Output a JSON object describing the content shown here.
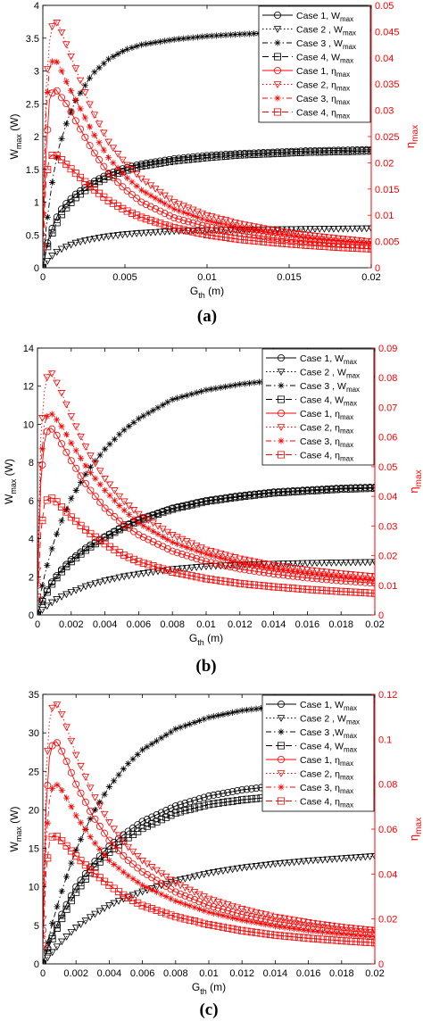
{
  "colors": {
    "w": "#000000",
    "eta": "#ff0000"
  },
  "chart_data": [
    {
      "type": "line",
      "panel": "(a)",
      "xlabel": "G",
      "xlabel_sub": "th",
      "xlabel_unit": " (m)",
      "ylabel": "W",
      "ylabel_sub": "max",
      "ylabel_unit": " (W)",
      "y2label": "η",
      "y2label_sub": "max",
      "xlim": [
        0,
        0.02
      ],
      "ylim": [
        0,
        4
      ],
      "y2lim": [
        0,
        0.05
      ],
      "xticks": [
        "0",
        "0.005",
        "0.01",
        "0.015",
        "0.02"
      ],
      "yticks": [
        "0",
        "0.5",
        "1",
        "1.5",
        "2",
        "2.5",
        "3",
        "3.5",
        "4"
      ],
      "y2ticks": [
        "0",
        "0.005",
        "0.01",
        "0.015",
        "0.02",
        "0.025",
        "0.03",
        "0.035",
        "0.04",
        "0.045",
        "0.05"
      ],
      "legend_position": "top-right",
      "legend": [
        "Case 1, W_max",
        "Case 2 , W_max",
        "Case 3 , W_max",
        "Case 4, W_max",
        "Case 1, η_max",
        "Case 2, η_max",
        "Case 3, η_max",
        "Case 4, η_max"
      ],
      "x": [
        0,
        0.0002,
        0.0004,
        0.0006,
        0.0008,
        0.001,
        0.0015,
        0.002,
        0.003,
        0.004,
        0.005,
        0.006,
        0.008,
        0.01,
        0.012,
        0.014,
        0.016,
        0.018,
        0.02
      ],
      "series": [
        {
          "name": "Case 1, W_max",
          "axis": "left",
          "values": [
            0,
            0.3,
            0.48,
            0.62,
            0.74,
            0.85,
            1.0,
            1.12,
            1.3,
            1.43,
            1.52,
            1.58,
            1.66,
            1.71,
            1.74,
            1.76,
            1.78,
            1.79,
            1.8
          ]
        },
        {
          "name": "Case 2 , W_max",
          "axis": "left",
          "values": [
            0,
            0.08,
            0.14,
            0.19,
            0.23,
            0.27,
            0.33,
            0.38,
            0.44,
            0.48,
            0.51,
            0.53,
            0.56,
            0.57,
            0.58,
            0.585,
            0.59,
            0.595,
            0.6
          ]
        },
        {
          "name": "Case 3 , W_max",
          "axis": "left",
          "values": [
            0,
            0.6,
            1.0,
            1.35,
            1.62,
            1.85,
            2.25,
            2.55,
            2.95,
            3.18,
            3.32,
            3.4,
            3.48,
            3.53,
            3.56,
            3.58,
            3.6,
            3.61,
            3.62
          ]
        },
        {
          "name": "Case 4, W_max",
          "axis": "left",
          "values": [
            0,
            0.25,
            0.42,
            0.55,
            0.66,
            0.76,
            0.94,
            1.07,
            1.26,
            1.39,
            1.48,
            1.55,
            1.63,
            1.68,
            1.72,
            1.74,
            1.76,
            1.77,
            1.78
          ]
        },
        {
          "name": "Case 1, η_max",
          "axis": "right",
          "values": [
            0.006,
            0.022,
            0.032,
            0.0335,
            0.034,
            0.033,
            0.031,
            0.028,
            0.0225,
            0.018,
            0.015,
            0.0125,
            0.0095,
            0.0078,
            0.0066,
            0.0057,
            0.0051,
            0.0046,
            0.0042
          ]
        },
        {
          "name": "Case 2, η_max",
          "axis": "right",
          "values": [
            0.01,
            0.034,
            0.043,
            0.0465,
            0.047,
            0.046,
            0.042,
            0.038,
            0.03,
            0.024,
            0.02,
            0.017,
            0.0125,
            0.01,
            0.0084,
            0.0072,
            0.0063,
            0.0056,
            0.005
          ]
        },
        {
          "name": "Case 3, η_max",
          "axis": "right",
          "values": [
            0.008,
            0.03,
            0.038,
            0.0395,
            0.0395,
            0.0385,
            0.035,
            0.032,
            0.026,
            0.021,
            0.0175,
            0.0148,
            0.0112,
            0.009,
            0.0076,
            0.0066,
            0.0058,
            0.0052,
            0.0047
          ]
        },
        {
          "name": "Case 4, η_max",
          "axis": "right",
          "values": [
            0.004,
            0.017,
            0.021,
            0.0215,
            0.0215,
            0.021,
            0.0195,
            0.018,
            0.0152,
            0.0128,
            0.011,
            0.0096,
            0.0076,
            0.0063,
            0.0054,
            0.0048,
            0.0043,
            0.0039,
            0.0036
          ]
        }
      ]
    },
    {
      "type": "line",
      "panel": "(b)",
      "xlabel": "G",
      "xlabel_sub": "th",
      "xlabel_unit": " (m)",
      "ylabel": "W",
      "ylabel_sub": "max",
      "ylabel_unit": " (W)",
      "y2label": "η",
      "y2label_sub": "max",
      "xlim": [
        0,
        0.02
      ],
      "ylim": [
        0,
        14
      ],
      "y2lim": [
        0,
        0.09
      ],
      "xticks": [
        "0",
        "0.002",
        "0.004",
        "0.006",
        "0.008",
        "0.01",
        "0.012",
        "0.014",
        "0.016",
        "0.018",
        "0.02"
      ],
      "yticks": [
        "0",
        "2",
        "4",
        "6",
        "8",
        "10",
        "12",
        "14"
      ],
      "y2ticks": [
        "0",
        "0.01",
        "0.02",
        "0.03",
        "0.04",
        "0.05",
        "0.06",
        "0.07",
        "0.08",
        "0.09"
      ],
      "legend_position": "top-right",
      "legend": [
        "Case 1, W_max",
        "Case 2 , W_max",
        "Case 3 , W_max",
        "Case 4, W_max",
        "Case 1, η_max",
        "Case 2, η_max",
        "Case 3, η_max",
        "Case 4, η_max"
      ],
      "x": [
        0,
        0.0002,
        0.0004,
        0.0006,
        0.0008,
        0.001,
        0.0015,
        0.002,
        0.003,
        0.004,
        0.005,
        0.006,
        0.008,
        0.01,
        0.012,
        0.014,
        0.016,
        0.018,
        0.02
      ],
      "series": [
        {
          "name": "Case 1, W_max",
          "axis": "left",
          "values": [
            0,
            0.6,
            1.0,
            1.35,
            1.65,
            1.9,
            2.45,
            2.9,
            3.6,
            4.1,
            4.6,
            5.0,
            5.6,
            6.0,
            6.25,
            6.45,
            6.55,
            6.65,
            6.7
          ]
        },
        {
          "name": "Case 2 , W_max",
          "axis": "left",
          "values": [
            0,
            0.2,
            0.35,
            0.5,
            0.62,
            0.75,
            1.0,
            1.2,
            1.55,
            1.8,
            2.0,
            2.15,
            2.4,
            2.55,
            2.63,
            2.68,
            2.72,
            2.75,
            2.77
          ]
        },
        {
          "name": "Case 3 , W_max",
          "axis": "left",
          "values": [
            0,
            1.2,
            2.0,
            2.7,
            3.3,
            3.9,
            5.1,
            6.1,
            7.6,
            8.7,
            9.6,
            10.3,
            11.3,
            11.8,
            12.1,
            12.3,
            12.4,
            12.45,
            12.5
          ]
        },
        {
          "name": "Case 4, W_max",
          "axis": "left",
          "values": [
            0,
            0.55,
            0.9,
            1.25,
            1.55,
            1.8,
            2.35,
            2.8,
            3.5,
            4.05,
            4.55,
            4.95,
            5.55,
            5.95,
            6.2,
            6.4,
            6.5,
            6.6,
            6.65
          ]
        },
        {
          "name": "Case 1, η_max",
          "axis": "right",
          "values": [
            0.01,
            0.045,
            0.058,
            0.0625,
            0.063,
            0.062,
            0.057,
            0.052,
            0.043,
            0.036,
            0.031,
            0.027,
            0.0215,
            0.018,
            0.0155,
            0.0138,
            0.0125,
            0.0115,
            0.0107
          ]
        },
        {
          "name": "Case 2, η_max",
          "axis": "right",
          "values": [
            0.015,
            0.06,
            0.075,
            0.081,
            0.082,
            0.08,
            0.074,
            0.067,
            0.055,
            0.046,
            0.039,
            0.034,
            0.027,
            0.022,
            0.019,
            0.0168,
            0.0152,
            0.014,
            0.013
          ]
        },
        {
          "name": "Case 3, η_max",
          "axis": "right",
          "values": [
            0.012,
            0.05,
            0.064,
            0.0675,
            0.068,
            0.067,
            0.063,
            0.058,
            0.049,
            0.042,
            0.036,
            0.031,
            0.0245,
            0.0205,
            0.0175,
            0.0155,
            0.014,
            0.0128,
            0.0118
          ]
        },
        {
          "name": "Case 4, η_max",
          "axis": "right",
          "values": [
            0.006,
            0.028,
            0.037,
            0.039,
            0.0395,
            0.039,
            0.036,
            0.033,
            0.028,
            0.024,
            0.0205,
            0.018,
            0.0145,
            0.0122,
            0.0106,
            0.0095,
            0.0086,
            0.0079,
            0.0073
          ]
        }
      ]
    },
    {
      "type": "line",
      "panel": "(c)",
      "xlabel": "G",
      "xlabel_sub": "th",
      "xlabel_unit": " (m)",
      "ylabel": "W",
      "ylabel_sub": "max",
      "ylabel_unit": " (W)",
      "y2label": "η",
      "y2label_sub": "max",
      "xlim": [
        0,
        0.02
      ],
      "ylim": [
        0,
        35
      ],
      "y2lim": [
        0,
        0.12
      ],
      "xticks": [
        "0",
        "0.002",
        "0.004",
        "0.006",
        "0.008",
        "0.01",
        "0.012",
        "0.014",
        "0.016",
        "0.018",
        "0.02"
      ],
      "yticks": [
        "0",
        "5",
        "10",
        "15",
        "20",
        "25",
        "30",
        "35"
      ],
      "y2ticks": [
        "0",
        "0.02",
        "0.04",
        "0.06",
        "0.08",
        "0.1",
        "0.12"
      ],
      "legend_position": "top-right",
      "legend": [
        "Case 1, W_max",
        "Case 2 , W_max",
        "Case 3 ,W_max",
        "Case 4, W_max",
        "Case 1, η_max",
        "Case 2, η_max",
        "Case 3, η_max",
        "Case 4, η_max"
      ],
      "x": [
        0,
        0.0002,
        0.0004,
        0.0006,
        0.0008,
        0.001,
        0.0015,
        0.002,
        0.003,
        0.004,
        0.005,
        0.006,
        0.008,
        0.01,
        0.012,
        0.014,
        0.016,
        0.018,
        0.02
      ],
      "series": [
        {
          "name": "Case 1, W_max",
          "axis": "left",
          "values": [
            0,
            1.5,
            2.7,
            3.8,
            4.8,
            5.8,
            8.0,
            10.0,
            13.0,
            15.3,
            17.0,
            18.5,
            20.5,
            21.8,
            22.6,
            23.1,
            23.5,
            23.8,
            24.0
          ]
        },
        {
          "name": "Case 2 , W_max",
          "axis": "left",
          "values": [
            0,
            0.6,
            1.1,
            1.6,
            2.1,
            2.6,
            3.7,
            4.7,
            6.3,
            7.6,
            8.6,
            9.4,
            10.8,
            11.8,
            12.5,
            13.0,
            13.4,
            13.7,
            14.0
          ]
        },
        {
          "name": "Case 3 ,W_max",
          "axis": "left",
          "values": [
            0,
            2.0,
            3.8,
            5.5,
            7.0,
            8.5,
            11.8,
            14.8,
            19.5,
            23.0,
            25.7,
            27.8,
            30.5,
            32.0,
            32.9,
            33.4,
            33.7,
            33.9,
            34.0
          ]
        },
        {
          "name": "Case 4, W_max",
          "axis": "left",
          "values": [
            0,
            1.3,
            2.4,
            3.4,
            4.4,
            5.3,
            7.4,
            9.3,
            12.3,
            14.5,
            16.2,
            17.6,
            19.6,
            20.7,
            21.3,
            21.7,
            21.9,
            22.0,
            22.1
          ]
        },
        {
          "name": "Case 1, η_max",
          "axis": "right",
          "values": [
            0.015,
            0.07,
            0.092,
            0.098,
            0.099,
            0.097,
            0.089,
            0.08,
            0.066,
            0.055,
            0.047,
            0.041,
            0.032,
            0.026,
            0.022,
            0.019,
            0.0168,
            0.015,
            0.0138
          ]
        },
        {
          "name": "Case 2, η_max",
          "axis": "right",
          "values": [
            0.02,
            0.085,
            0.108,
            0.115,
            0.116,
            0.114,
            0.104,
            0.093,
            0.076,
            0.063,
            0.053,
            0.046,
            0.036,
            0.029,
            0.0245,
            0.021,
            0.0185,
            0.0165,
            0.015
          ]
        },
        {
          "name": "Case 3, η_max",
          "axis": "right",
          "values": [
            0.012,
            0.055,
            0.073,
            0.079,
            0.08,
            0.079,
            0.073,
            0.066,
            0.055,
            0.046,
            0.04,
            0.035,
            0.028,
            0.023,
            0.0195,
            0.0168,
            0.0148,
            0.0133,
            0.012
          ]
        },
        {
          "name": "Case 4, η_max",
          "axis": "right",
          "values": [
            0.008,
            0.042,
            0.054,
            0.057,
            0.057,
            0.056,
            0.052,
            0.048,
            0.041,
            0.035,
            0.03,
            0.026,
            0.021,
            0.0175,
            0.0148,
            0.0128,
            0.0114,
            0.0103,
            0.0094
          ]
        }
      ]
    }
  ]
}
